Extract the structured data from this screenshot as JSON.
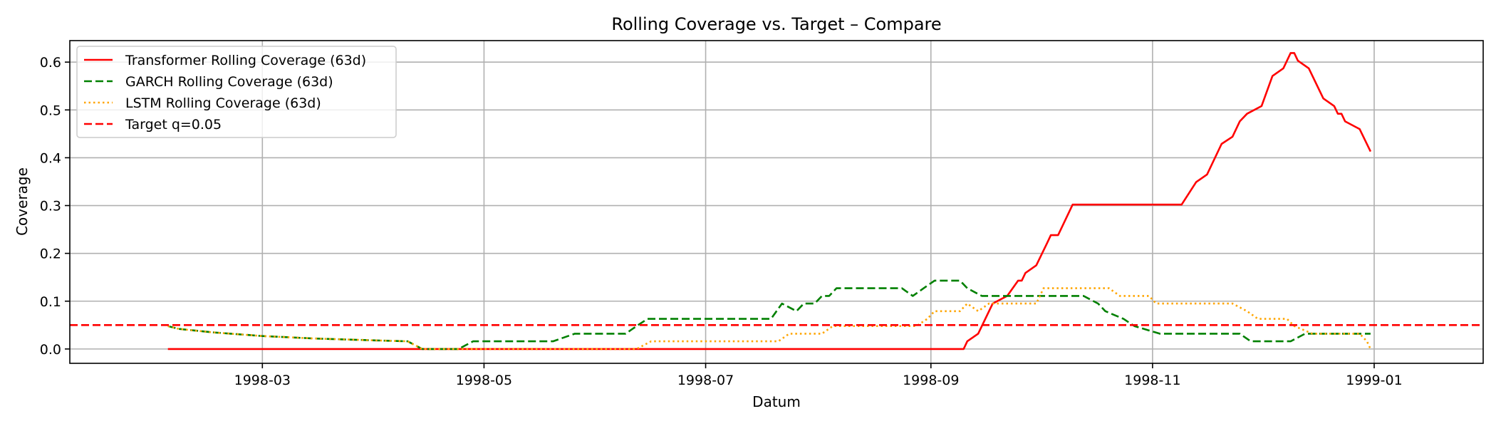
{
  "chart_data": {
    "type": "line",
    "title": "Rolling Coverage vs. Target – Compare",
    "xlabel": "Datum",
    "ylabel": "Coverage",
    "xlim": [
      "1998-01-07",
      "1999-01-31"
    ],
    "ylim": [
      -0.03,
      0.645
    ],
    "x_ticks": [
      "1998-03-01",
      "1998-05-01",
      "1998-07-01",
      "1998-09-01",
      "1998-11-01",
      "1999-01-01"
    ],
    "x_tick_labels": [
      "1998-03",
      "1998-05",
      "1998-07",
      "1998-09",
      "1998-11",
      "1999-01"
    ],
    "y_ticks": [
      0.0,
      0.1,
      0.2,
      0.3,
      0.4,
      0.5,
      0.6
    ],
    "y_tick_labels": [
      "0.0",
      "0.1",
      "0.2",
      "0.3",
      "0.4",
      "0.5",
      "0.6"
    ],
    "grid": true,
    "legend_position": "top-left",
    "series": [
      {
        "name": "Transformer Rolling Coverage (63d)",
        "color": "#ff0000",
        "dash": "solid",
        "points": [
          [
            "1998-02-03",
            0.0
          ],
          [
            "1998-09-10",
            0.0
          ],
          [
            "1998-09-11",
            0.016
          ],
          [
            "1998-09-14",
            0.032
          ],
          [
            "1998-09-18",
            0.095
          ],
          [
            "1998-09-22",
            0.111
          ],
          [
            "1998-09-25",
            0.143
          ],
          [
            "1998-09-26",
            0.143
          ],
          [
            "1998-09-27",
            0.159
          ],
          [
            "1998-09-30",
            0.175
          ],
          [
            "1998-10-03",
            0.222
          ],
          [
            "1998-10-04",
            0.238
          ],
          [
            "1998-10-06",
            0.238
          ],
          [
            "1998-10-09",
            0.286
          ],
          [
            "1998-10-10",
            0.302
          ],
          [
            "1998-11-09",
            0.302
          ],
          [
            "1998-11-13",
            0.349
          ],
          [
            "1998-11-16",
            0.365
          ],
          [
            "1998-11-20",
            0.429
          ],
          [
            "1998-11-23",
            0.444
          ],
          [
            "1998-11-25",
            0.476
          ],
          [
            "1998-11-27",
            0.492
          ],
          [
            "1998-12-01",
            0.508
          ],
          [
            "1998-12-04",
            0.571
          ],
          [
            "1998-12-07",
            0.587
          ],
          [
            "1998-12-09",
            0.619
          ],
          [
            "1998-12-10",
            0.619
          ],
          [
            "1998-12-11",
            0.603
          ],
          [
            "1998-12-14",
            0.587
          ],
          [
            "1998-12-18",
            0.524
          ],
          [
            "1998-12-21",
            0.508
          ],
          [
            "1998-12-22",
            0.492
          ],
          [
            "1998-12-23",
            0.492
          ],
          [
            "1998-12-24",
            0.476
          ],
          [
            "1998-12-28",
            0.46
          ],
          [
            "1998-12-31",
            0.413
          ]
        ]
      },
      {
        "name": "GARCH Rolling Coverage (63d)",
        "color": "#008000",
        "dash": "dashed",
        "points": [
          [
            "1998-02-03",
            0.048
          ],
          [
            "1998-02-06",
            0.042
          ],
          [
            "1998-02-15",
            0.035
          ],
          [
            "1998-03-01",
            0.027
          ],
          [
            "1998-03-15",
            0.022
          ],
          [
            "1998-04-01",
            0.018
          ],
          [
            "1998-04-10",
            0.016
          ],
          [
            "1998-04-14",
            0.0
          ],
          [
            "1998-04-24",
            0.0
          ],
          [
            "1998-04-28",
            0.016
          ],
          [
            "1998-05-20",
            0.016
          ],
          [
            "1998-05-26",
            0.032
          ],
          [
            "1998-06-09",
            0.032
          ],
          [
            "1998-06-12",
            0.048
          ],
          [
            "1998-06-15",
            0.063
          ],
          [
            "1998-07-19",
            0.063
          ],
          [
            "1998-07-22",
            0.095
          ],
          [
            "1998-07-26",
            0.079
          ],
          [
            "1998-07-28",
            0.095
          ],
          [
            "1998-07-31",
            0.095
          ],
          [
            "1998-08-02",
            0.111
          ],
          [
            "1998-08-04",
            0.111
          ],
          [
            "1998-08-06",
            0.127
          ],
          [
            "1998-08-24",
            0.127
          ],
          [
            "1998-08-27",
            0.111
          ],
          [
            "1998-08-30",
            0.127
          ],
          [
            "1998-09-02",
            0.143
          ],
          [
            "1998-09-09",
            0.143
          ],
          [
            "1998-09-11",
            0.127
          ],
          [
            "1998-09-15",
            0.111
          ],
          [
            "1998-10-13",
            0.111
          ],
          [
            "1998-10-17",
            0.095
          ],
          [
            "1998-10-19",
            0.079
          ],
          [
            "1998-10-24",
            0.063
          ],
          [
            "1998-10-27",
            0.048
          ],
          [
            "1998-11-03",
            0.032
          ],
          [
            "1998-11-25",
            0.032
          ],
          [
            "1998-11-28",
            0.016
          ],
          [
            "1998-12-09",
            0.016
          ],
          [
            "1998-12-13",
            0.032
          ],
          [
            "1998-12-31",
            0.032
          ]
        ]
      },
      {
        "name": "LSTM Rolling Coverage (63d)",
        "color": "#ffa500",
        "dash": "dotted",
        "points": [
          [
            "1998-02-03",
            0.048
          ],
          [
            "1998-02-06",
            0.042
          ],
          [
            "1998-02-15",
            0.035
          ],
          [
            "1998-03-01",
            0.027
          ],
          [
            "1998-03-15",
            0.022
          ],
          [
            "1998-04-01",
            0.018
          ],
          [
            "1998-04-10",
            0.016
          ],
          [
            "1998-04-14",
            0.0
          ],
          [
            "1998-06-12",
            0.0
          ],
          [
            "1998-06-16",
            0.016
          ],
          [
            "1998-07-21",
            0.016
          ],
          [
            "1998-07-24",
            0.032
          ],
          [
            "1998-08-02",
            0.032
          ],
          [
            "1998-08-05",
            0.048
          ],
          [
            "1998-08-28",
            0.048
          ],
          [
            "1998-08-31",
            0.063
          ],
          [
            "1998-09-02",
            0.079
          ],
          [
            "1998-09-09",
            0.079
          ],
          [
            "1998-09-11",
            0.095
          ],
          [
            "1998-09-14",
            0.079
          ],
          [
            "1998-09-17",
            0.095
          ],
          [
            "1998-09-30",
            0.095
          ],
          [
            "1998-10-02",
            0.127
          ],
          [
            "1998-10-20",
            0.127
          ],
          [
            "1998-10-23",
            0.111
          ],
          [
            "1998-10-31",
            0.111
          ],
          [
            "1998-11-02",
            0.095
          ],
          [
            "1998-11-23",
            0.095
          ],
          [
            "1998-11-27",
            0.079
          ],
          [
            "1998-11-30",
            0.063
          ],
          [
            "1998-12-08",
            0.063
          ],
          [
            "1998-12-10",
            0.048
          ],
          [
            "1998-12-15",
            0.032
          ],
          [
            "1998-12-28",
            0.032
          ],
          [
            "1998-12-30",
            0.016
          ],
          [
            "1998-12-31",
            0.0
          ]
        ]
      }
    ],
    "reference_lines": [
      {
        "name": "Target q=0.05",
        "y": 0.05,
        "color": "#ff0000",
        "dash": "dashed"
      }
    ]
  }
}
